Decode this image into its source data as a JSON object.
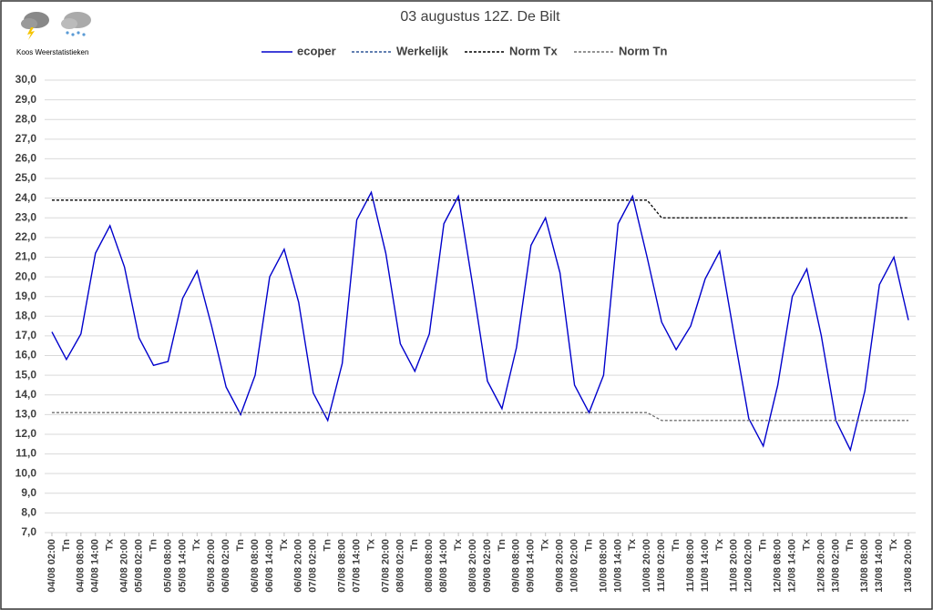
{
  "chart_data": {
    "type": "line",
    "title": "03 augustus 12Z. De Bilt",
    "logo_text": "Koos Weerstatistieken",
    "categories": [
      "04/08 02:00",
      "Tn",
      "04/08 08:00",
      "04/08 14:00",
      "Tx",
      "04/08 20:00",
      "05/08 02:00",
      "Tn",
      "05/08 08:00",
      "05/08 14:00",
      "Tx",
      "05/08 20:00",
      "06/08 02:00",
      "Tn",
      "06/08 08:00",
      "06/08 14:00",
      "Tx",
      "06/08 20:00",
      "07/08 02:00",
      "Tn",
      "07/08 08:00",
      "07/08 14:00",
      "Tx",
      "07/08 20:00",
      "08/08 02:00",
      "Tn",
      "08/08 08:00",
      "08/08 14:00",
      "Tx",
      "08/08 20:00",
      "09/08 02:00",
      "Tn",
      "09/08 08:00",
      "09/08 14:00",
      "Tx",
      "09/08 20:00",
      "10/08 02:00",
      "Tn",
      "10/08 08:00",
      "10/08 14:00",
      "Tx",
      "10/08 20:00",
      "11/08 02:00",
      "Tn",
      "11/08 08:00",
      "11/08 14:00",
      "Tx",
      "11/08 20:00",
      "12/08 02:00",
      "Tn",
      "12/08 08:00",
      "12/08 14:00",
      "Tx",
      "12/08 20:00",
      "13/08 02:00",
      "Tn",
      "13/08 08:00",
      "13/08 14:00",
      "Tx",
      "13/08 20:00"
    ],
    "series": [
      {
        "name": "ecoper",
        "color": "#0000cc",
        "dash": "none",
        "values": [
          17.2,
          15.8,
          17.1,
          21.2,
          22.6,
          20.5,
          16.9,
          15.5,
          15.7,
          18.9,
          20.3,
          17.5,
          14.4,
          13.0,
          15.0,
          20.0,
          21.4,
          18.7,
          14.1,
          12.7,
          15.6,
          22.9,
          24.3,
          21.2,
          16.6,
          15.2,
          17.1,
          22.7,
          24.1,
          19.5,
          14.7,
          13.3,
          16.4,
          21.6,
          23.0,
          20.2,
          14.5,
          13.1,
          15.0,
          22.7,
          24.1,
          21.0,
          17.7,
          16.3,
          17.5,
          19.9,
          21.3,
          17.0,
          12.8,
          11.4,
          14.5,
          19.0,
          20.4,
          17.0,
          12.7,
          11.2,
          14.2,
          19.6,
          21.0,
          17.8
        ]
      },
      {
        "name": "Werkelijk",
        "color": "#2f5597",
        "dash": "3,2",
        "values": [
          null,
          null,
          null,
          null,
          null,
          null,
          null,
          null,
          null,
          null,
          null,
          null,
          null,
          null,
          null,
          null,
          null,
          null,
          null,
          null,
          null,
          null,
          null,
          null,
          null,
          null,
          null,
          null,
          null,
          null,
          null,
          null,
          null,
          null,
          null,
          null,
          null,
          null,
          null,
          null,
          null,
          null,
          null,
          null,
          null,
          null,
          null,
          null,
          null,
          null,
          null,
          null,
          null,
          null,
          null,
          null,
          null,
          null,
          null,
          null
        ]
      },
      {
        "name": "Norm Tx",
        "color": "#000000",
        "dash": "3,2",
        "values": [
          23.9,
          23.9,
          23.9,
          23.9,
          23.9,
          23.9,
          23.9,
          23.9,
          23.9,
          23.9,
          23.9,
          23.9,
          23.9,
          23.9,
          23.9,
          23.9,
          23.9,
          23.9,
          23.9,
          23.9,
          23.9,
          23.9,
          23.9,
          23.9,
          23.9,
          23.9,
          23.9,
          23.9,
          23.9,
          23.9,
          23.9,
          23.9,
          23.9,
          23.9,
          23.9,
          23.9,
          23.9,
          23.9,
          23.9,
          23.9,
          23.9,
          23.9,
          23.0,
          23.0,
          23.0,
          23.0,
          23.0,
          23.0,
          23.0,
          23.0,
          23.0,
          23.0,
          23.0,
          23.0,
          23.0,
          23.0,
          23.0,
          23.0,
          23.0,
          23.0
        ]
      },
      {
        "name": "Norm Tn",
        "color": "#707070",
        "dash": "3,2",
        "values": [
          13.1,
          13.1,
          13.1,
          13.1,
          13.1,
          13.1,
          13.1,
          13.1,
          13.1,
          13.1,
          13.1,
          13.1,
          13.1,
          13.1,
          13.1,
          13.1,
          13.1,
          13.1,
          13.1,
          13.1,
          13.1,
          13.1,
          13.1,
          13.1,
          13.1,
          13.1,
          13.1,
          13.1,
          13.1,
          13.1,
          13.1,
          13.1,
          13.1,
          13.1,
          13.1,
          13.1,
          13.1,
          13.1,
          13.1,
          13.1,
          13.1,
          13.1,
          12.7,
          12.7,
          12.7,
          12.7,
          12.7,
          12.7,
          12.7,
          12.7,
          12.7,
          12.7,
          12.7,
          12.7,
          12.7,
          12.7,
          12.7,
          12.7,
          12.7,
          12.7
        ]
      }
    ],
    "ylim": [
      7,
      30
    ],
    "yticks": [
      {
        "value": 7,
        "label": "7,0"
      },
      {
        "value": 8,
        "label": "8,0"
      },
      {
        "value": 9,
        "label": "9,0"
      },
      {
        "value": 10,
        "label": "10,0"
      },
      {
        "value": 11,
        "label": "11,0"
      },
      {
        "value": 12,
        "label": "12,0"
      },
      {
        "value": 13,
        "label": "13,0"
      },
      {
        "value": 14,
        "label": "14,0"
      },
      {
        "value": 15,
        "label": "15,0"
      },
      {
        "value": 16,
        "label": "16,0"
      },
      {
        "value": 17,
        "label": "17,0"
      },
      {
        "value": 18,
        "label": "18,0"
      },
      {
        "value": 19,
        "label": "19,0"
      },
      {
        "value": 20,
        "label": "20,0"
      },
      {
        "value": 21,
        "label": "21,0"
      },
      {
        "value": 22,
        "label": "22,0"
      },
      {
        "value": 23,
        "label": "23,0"
      },
      {
        "value": 24,
        "label": "24,0"
      },
      {
        "value": 25,
        "label": "25,0"
      },
      {
        "value": 26,
        "label": "26,0"
      },
      {
        "value": 27,
        "label": "27,0"
      },
      {
        "value": 28,
        "label": "28,0"
      },
      {
        "value": 29,
        "label": "29,0"
      },
      {
        "value": 30,
        "label": "30,0"
      }
    ],
    "grid": true,
    "legend": "top"
  }
}
